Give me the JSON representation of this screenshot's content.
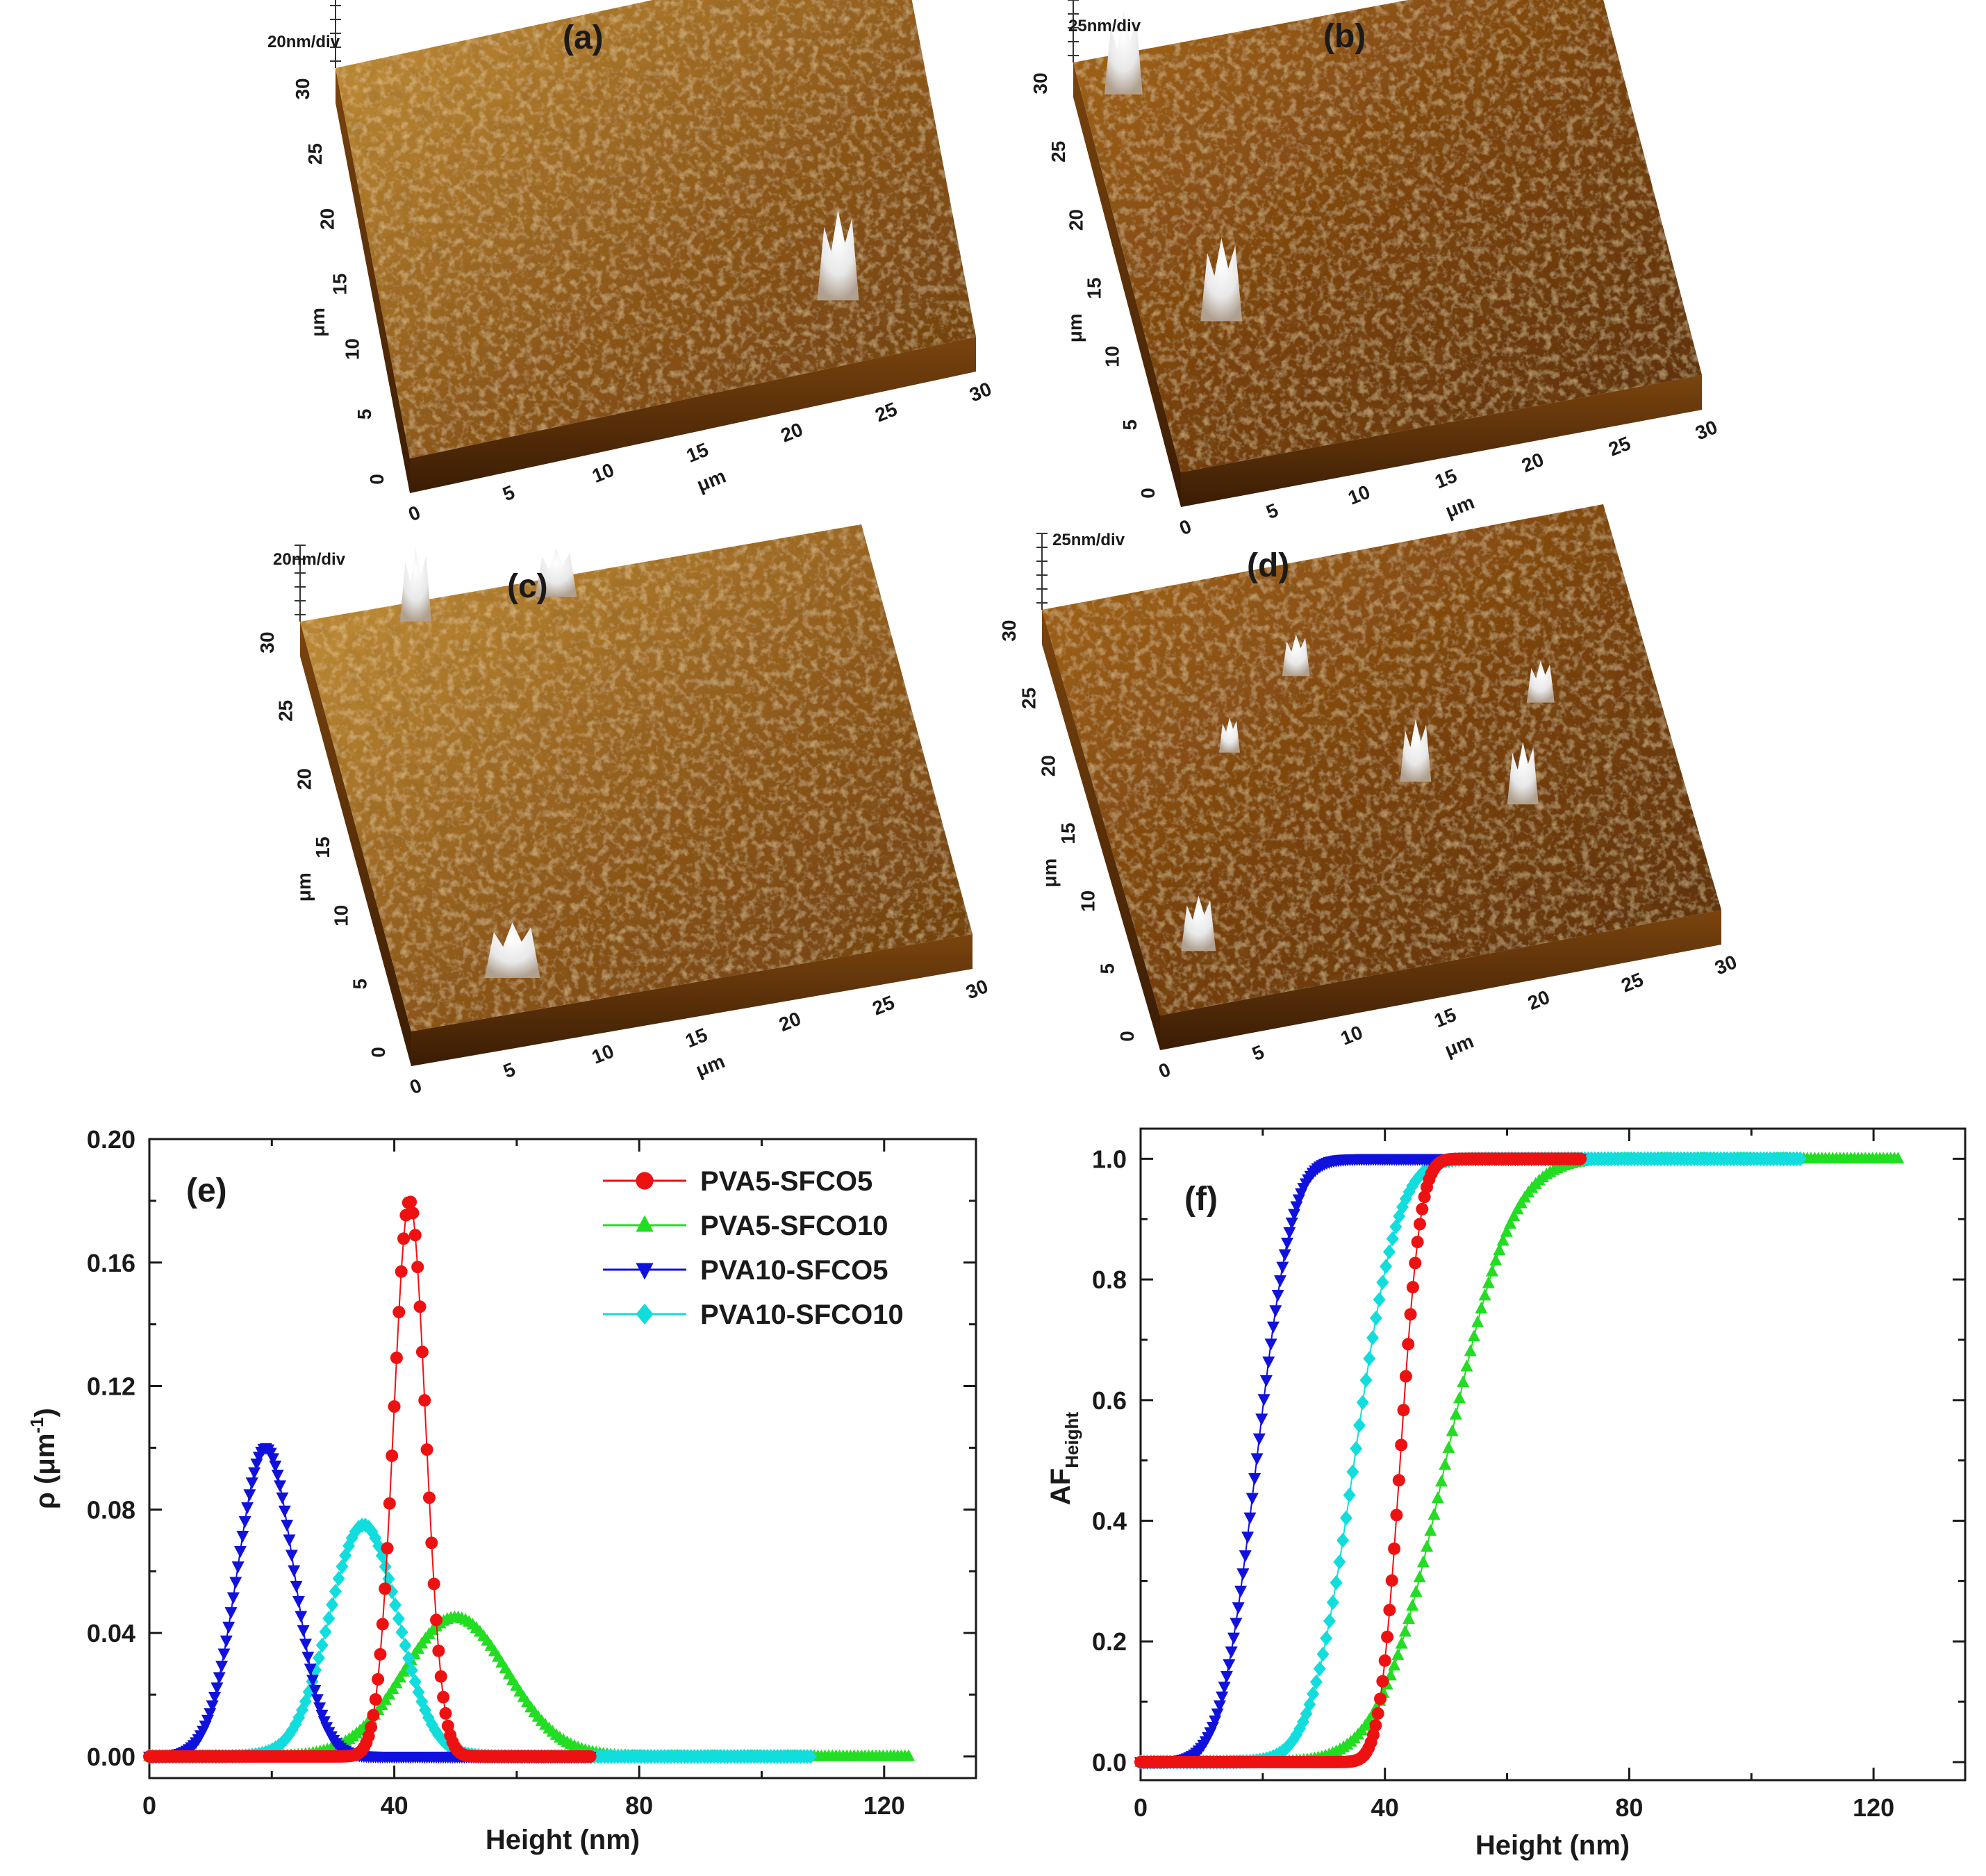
{
  "afm_panels": [
    {
      "label": "(a)",
      "scale": "20nm/div",
      "y_unit": "μm",
      "x_unit": "μm",
      "y_ticks": [
        "0",
        "5",
        "10",
        "15",
        "20",
        "25",
        "30"
      ],
      "x_ticks": [
        "0",
        "5",
        "10",
        "15",
        "20",
        "25",
        "30"
      ]
    },
    {
      "label": "(b)",
      "scale": "25nm/div",
      "y_unit": "μm",
      "x_unit": "μm",
      "y_ticks": [
        "0",
        "5",
        "10",
        "15",
        "20",
        "25",
        "30"
      ],
      "x_ticks": [
        "0",
        "5",
        "10",
        "15",
        "20",
        "25",
        "30"
      ]
    },
    {
      "label": "(c)",
      "scale": "20nm/div",
      "y_unit": "μm",
      "x_unit": "μm",
      "y_ticks": [
        "0",
        "5",
        "10",
        "15",
        "20",
        "25",
        "30"
      ],
      "x_ticks": [
        "0",
        "5",
        "10",
        "15",
        "20",
        "25",
        "30"
      ]
    },
    {
      "label": "(d)",
      "scale": "25nm/div",
      "y_unit": "μm",
      "x_unit": "μm",
      "y_ticks": [
        "0",
        "5",
        "10",
        "15",
        "20",
        "25",
        "30"
      ],
      "x_ticks": [
        "0",
        "5",
        "10",
        "15",
        "20",
        "25",
        "30"
      ]
    }
  ],
  "chart_data": [
    {
      "type": "scatter",
      "panel": "(e)",
      "xlabel": "Height (nm)",
      "ylabel_main": "ρ (μm",
      "ylabel_sup": "-1",
      "ylabel_close": ")",
      "xlim": [
        0,
        135
      ],
      "ylim": [
        -0.007,
        0.2
      ],
      "x_ticks": [
        0,
        40,
        80,
        120
      ],
      "y_ticks": [
        0.0,
        0.04,
        0.08,
        0.12,
        0.16,
        0.2
      ],
      "y_tick_labels": [
        "0.00",
        "0.04",
        "0.08",
        "0.12",
        "0.16",
        "0.20"
      ],
      "legend_position": "top-right",
      "series": [
        {
          "name": "PVA5-SFCO5",
          "color": "#ee1111",
          "marker": "circle",
          "x_range": [
            0,
            72
          ],
          "n_points": 190,
          "peak_x": 42.5,
          "peak_y": 0.18,
          "sigma": 2.6
        },
        {
          "name": "PVA5-SFCO10",
          "color": "#22dd22",
          "marker": "triangle-up",
          "x_range": [
            0,
            124
          ],
          "n_points": 210,
          "peak_x": 50,
          "peak_y": 0.045,
          "sigma": 8.5
        },
        {
          "name": "PVA10-SFCO5",
          "color": "#1111dd",
          "marker": "triangle-down",
          "x_range": [
            0,
            72
          ],
          "n_points": 190,
          "peak_x": 19,
          "peak_y": 0.1,
          "sigma": 4.6
        },
        {
          "name": "PVA10-SFCO10",
          "color": "#11dddd",
          "marker": "diamond",
          "x_range": [
            0,
            108
          ],
          "n_points": 200,
          "peak_x": 35,
          "peak_y": 0.075,
          "sigma": 5.6
        }
      ]
    },
    {
      "type": "scatter",
      "panel": "(f)",
      "xlabel": "Height (nm)",
      "ylabel_main": "AF",
      "ylabel_sub": "Height",
      "xlim": [
        0,
        135
      ],
      "ylim": [
        -0.03,
        1.05
      ],
      "x_ticks": [
        0,
        40,
        80,
        120
      ],
      "y_ticks": [
        0.0,
        0.2,
        0.4,
        0.6,
        0.8,
        1.0
      ],
      "y_tick_labels": [
        "0.0",
        "0.2",
        "0.4",
        "0.6",
        "0.8",
        "1.0"
      ],
      "series": [
        {
          "name": "PVA5-SFCO5",
          "color": "#ee1111",
          "marker": "circle",
          "x_range": [
            0,
            72
          ],
          "n_points": 190,
          "center_x": 42.5,
          "width": 2.6
        },
        {
          "name": "PVA5-SFCO10",
          "color": "#22dd22",
          "marker": "triangle-up",
          "x_range": [
            0,
            124
          ],
          "n_points": 210,
          "center_x": 50,
          "width": 8.5
        },
        {
          "name": "PVA10-SFCO5",
          "color": "#1111dd",
          "marker": "triangle-down",
          "x_range": [
            0,
            72
          ],
          "n_points": 190,
          "center_x": 19,
          "width": 4.6
        },
        {
          "name": "PVA10-SFCO10",
          "color": "#11dddd",
          "marker": "diamond",
          "x_range": [
            0,
            108
          ],
          "n_points": 200,
          "center_x": 35,
          "width": 5.6
        }
      ]
    }
  ]
}
